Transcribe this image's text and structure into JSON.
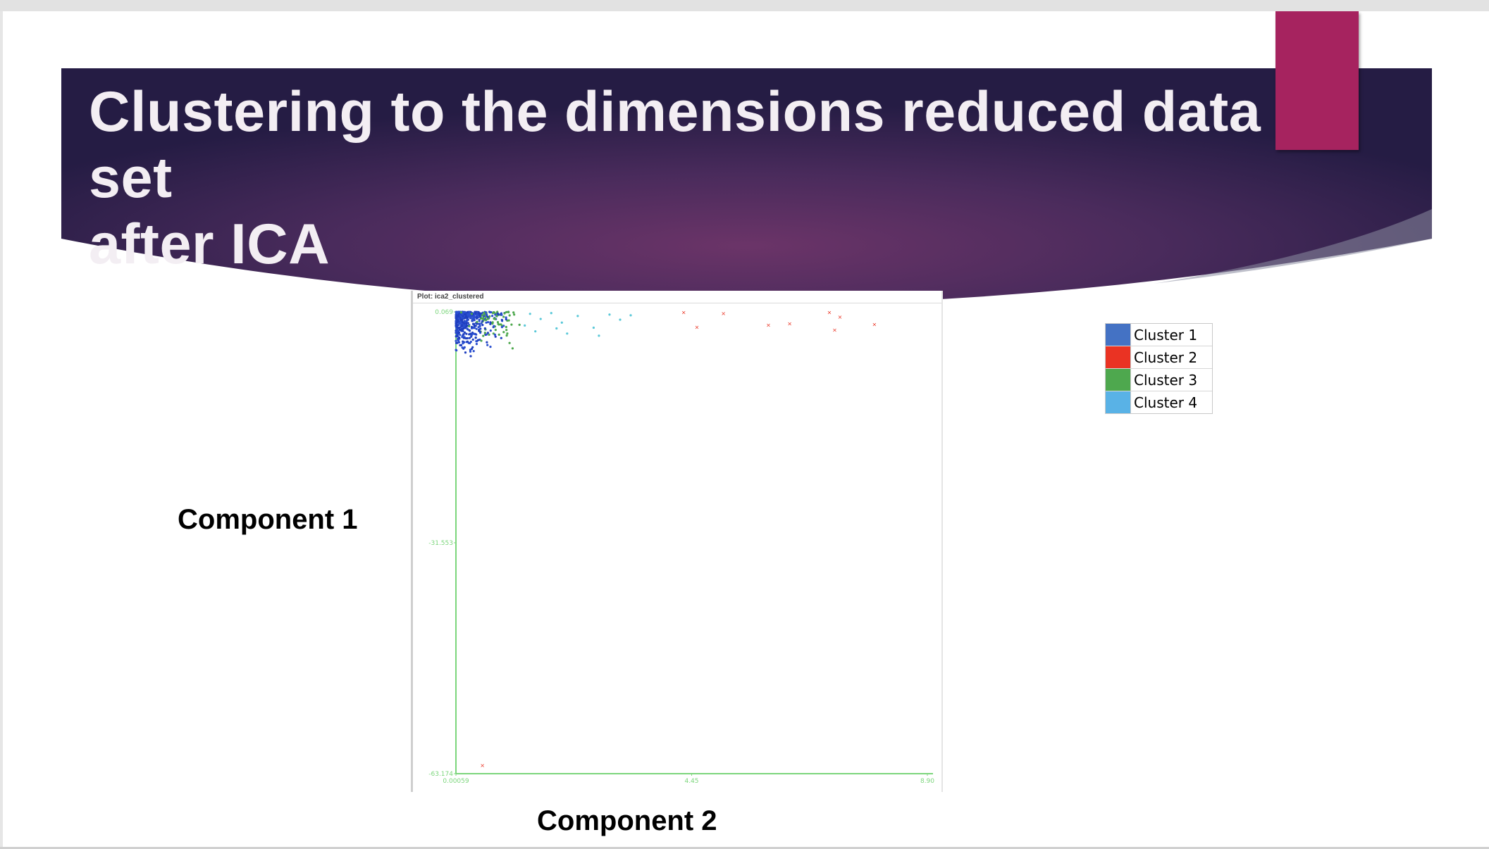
{
  "slide": {
    "title_line1": "Clustering to the dimensions reduced data set",
    "title_line2": "after ICA",
    "y_axis_caption": "Component 1",
    "x_axis_caption": "Component 2"
  },
  "plot_window": {
    "header": "Plot: ica2_clustered"
  },
  "legend": [
    {
      "label": "Cluster 1",
      "color": "#4472c4"
    },
    {
      "label": "Cluster 2",
      "color": "#ea3323"
    },
    {
      "label": "Cluster 3",
      "color": "#4ea84e"
    },
    {
      "label": "Cluster 4",
      "color": "#59b2e6"
    }
  ],
  "chart_data": {
    "type": "scatter",
    "x_ticks": [
      "0.00059",
      "4.45",
      "8.90"
    ],
    "y_ticks": [
      "0.069",
      "-31.553",
      "-63.174"
    ],
    "xlim": [
      0.00059,
      8.9
    ],
    "ylim": [
      -63.174,
      0.069
    ],
    "axis_color": "#7cd67c",
    "series": [
      {
        "color": "#1f3fbf",
        "description_points": [
          [
            0.05,
            -0.5
          ],
          [
            0.12,
            -1.0
          ],
          [
            0.2,
            -1.5
          ],
          [
            0.3,
            -2.0
          ],
          [
            0.1,
            -2.5
          ],
          [
            0.25,
            -3.0
          ],
          [
            0.4,
            -0.8
          ],
          [
            0.35,
            -1.8
          ],
          [
            0.5,
            -1.2
          ],
          [
            0.15,
            -3.5
          ],
          [
            0.22,
            -4.0
          ],
          [
            0.45,
            -2.6
          ],
          [
            0.6,
            -0.6
          ],
          [
            0.55,
            -2.2
          ],
          [
            0.08,
            -4.5
          ],
          [
            0.3,
            -5.0
          ],
          [
            0.18,
            -5.5
          ],
          [
            0.42,
            -3.8
          ],
          [
            0.65,
            -1.6
          ],
          [
            0.28,
            -6.0
          ]
        ]
      },
      {
        "color": "#ea3323",
        "description_points": [
          [
            4.3,
            0.0
          ],
          [
            5.05,
            -0.1
          ],
          [
            4.55,
            -2.0
          ],
          [
            5.9,
            -1.7
          ],
          [
            6.3,
            -1.5
          ],
          [
            7.05,
            0.0
          ],
          [
            7.25,
            -0.6
          ],
          [
            7.15,
            -2.4
          ],
          [
            7.9,
            -1.6
          ],
          [
            0.5,
            -62.0
          ]
        ]
      },
      {
        "color": "#4ea84e",
        "description_points": [
          [
            0.1,
            0.0
          ],
          [
            0.3,
            -0.2
          ],
          [
            0.5,
            -0.4
          ],
          [
            0.7,
            -0.1
          ],
          [
            0.9,
            -0.6
          ],
          [
            0.4,
            -1.3
          ],
          [
            0.6,
            -0.9
          ],
          [
            0.8,
            -1.6
          ],
          [
            1.0,
            -1.1
          ],
          [
            0.25,
            -1.9
          ],
          [
            0.75,
            -2.4
          ],
          [
            1.1,
            -0.3
          ],
          [
            0.95,
            -2.0
          ],
          [
            0.55,
            -2.8
          ],
          [
            1.2,
            -1.7
          ]
        ]
      },
      {
        "color": "#59c8d8",
        "description_points": [
          [
            1.4,
            -0.2
          ],
          [
            1.6,
            -0.9
          ],
          [
            1.8,
            -0.1
          ],
          [
            2.0,
            -1.4
          ],
          [
            2.3,
            -0.5
          ],
          [
            2.6,
            -2.1
          ],
          [
            2.9,
            -0.3
          ],
          [
            3.1,
            -1.0
          ],
          [
            3.3,
            -0.4
          ],
          [
            1.5,
            -2.6
          ],
          [
            2.1,
            -2.9
          ],
          [
            2.7,
            -3.2
          ],
          [
            1.3,
            -1.8
          ],
          [
            1.9,
            -2.2
          ]
        ]
      }
    ]
  }
}
